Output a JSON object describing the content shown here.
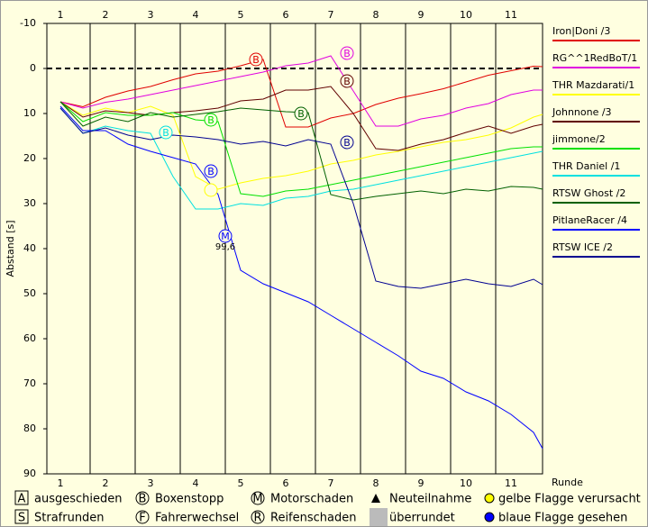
{
  "chart_data": {
    "type": "line",
    "y_label": "Abstand [s]",
    "x_label": "Runde",
    "inverted_y": true,
    "xlim": [
      0.7,
      11.7
    ],
    "xticks": [
      1,
      2,
      3,
      4,
      5,
      6,
      7,
      8,
      9,
      10,
      11
    ],
    "ylim": [
      -10,
      90
    ],
    "yticks": [
      -10,
      0,
      10,
      20,
      30,
      40,
      50,
      60,
      70,
      80,
      90
    ],
    "x": [
      1,
      1.5,
      2,
      2.5,
      3,
      3.5,
      4,
      4.5,
      5,
      5.5,
      6,
      6.5,
      7,
      7.5,
      8,
      8.5,
      9,
      9.5,
      10,
      10.5,
      11,
      11.5,
      11.7
    ],
    "series": [
      {
        "name": "Iron|Doni /3",
        "color": "#e00000",
        "values": [
          7.4,
          8.5,
          6.4,
          5,
          4,
          2.5,
          1.2,
          0.6,
          -0.6,
          -2,
          13,
          13,
          11,
          10,
          8,
          6.6,
          5.6,
          4.5,
          3,
          1.5,
          0.5,
          -0.5,
          -0.4
        ]
      },
      {
        "name": "RG^^1RedBoT/1",
        "color": "#e000e0",
        "values": [
          7.4,
          8.8,
          7.5,
          6.8,
          5.8,
          4.8,
          3.8,
          2.8,
          1.8,
          0.8,
          -0.6,
          -1.2,
          -2.8,
          5,
          12.8,
          12.8,
          11.2,
          10.4,
          8.8,
          7.8,
          5.8,
          4.8,
          4.8
        ]
      },
      {
        "name": "THR Mazdarati/1",
        "color": "#ffff00",
        "values": [
          7.4,
          10.4,
          8.8,
          9.8,
          8.4,
          10.4,
          24,
          26.8,
          25.4,
          24.4,
          23.8,
          22.8,
          21.2,
          20.4,
          19.2,
          18.4,
          17.4,
          16.4,
          15.8,
          14.8,
          13.2,
          10.8,
          10.2
        ]
      },
      {
        "name": "Johnnone /3",
        "color": "#600000",
        "values": [
          7.4,
          10.8,
          9.4,
          9.8,
          10.4,
          9.8,
          9.4,
          8.8,
          7.2,
          6.8,
          4.8,
          4.8,
          4,
          10,
          17.8,
          18.2,
          16.8,
          15.8,
          14.2,
          12.8,
          14.4,
          12.8,
          12.4
        ]
      },
      {
        "name": "jimmone/2",
        "color": "#00e000",
        "values": [
          7.4,
          11.8,
          9.8,
          10.4,
          10.4,
          9.8,
          11.4,
          11.8,
          27.8,
          28.4,
          27.2,
          26.8,
          25.8,
          24.8,
          23.8,
          22.8,
          21.8,
          20.8,
          19.8,
          18.8,
          17.8,
          17.4,
          17.4
        ]
      },
      {
        "name": "THR Daniel /1",
        "color": "#00e0e0",
        "values": [
          8.8,
          14.4,
          12.8,
          13.8,
          14.4,
          24,
          31.2,
          31.2,
          30,
          30.4,
          28.8,
          28.4,
          27.2,
          26.8,
          25.8,
          24.8,
          23.8,
          22.8,
          21.8,
          20.8,
          19.8,
          18.8,
          18.4
        ]
      },
      {
        "name": "RTSW Ghost /2",
        "color": "#006000",
        "values": [
          7.4,
          12.8,
          10.8,
          11.8,
          9.8,
          10.8,
          10.2,
          9.6,
          8.8,
          9.2,
          9.6,
          9.8,
          28,
          29.2,
          28.4,
          27.8,
          27.2,
          27.8,
          26.8,
          27.2,
          26.2,
          26.4,
          26.8
        ]
      },
      {
        "name": "PitlaneRacer /4",
        "color": "#0000ff",
        "values": [
          8.4,
          13.8,
          13.8,
          16.8,
          18.4,
          19.8,
          21.2,
          28,
          44.8,
          47.8,
          49.8,
          51.8,
          54.8,
          57.8,
          60.8,
          63.8,
          67.2,
          68.8,
          71.8,
          73.8,
          76.8,
          80.8,
          84.4
        ]
      },
      {
        "name": "RTSW ICE /2",
        "color": "#000090",
        "values": [
          8.8,
          14.4,
          13.2,
          14.8,
          15.8,
          14.8,
          15.2,
          15.8,
          16.8,
          16.2,
          17.2,
          15.8,
          16.8,
          30,
          47.2,
          48.4,
          48.8,
          47.8,
          46.8,
          47.8,
          48.4,
          46.8,
          48
        ]
      }
    ],
    "markers": [
      {
        "label": "B",
        "series": 0,
        "x": 5.34,
        "y": -2
      },
      {
        "label": "B",
        "series": 1,
        "x": 7.36,
        "y": -3.4
      },
      {
        "label": "B",
        "series": 3,
        "x": 7.36,
        "y": 2.8
      },
      {
        "label": "B",
        "series": 4,
        "x": 4.34,
        "y": 11.4
      },
      {
        "label": "B",
        "series": 6,
        "x": 6.34,
        "y": 10
      },
      {
        "label": "B",
        "series": 5,
        "x": 3.34,
        "y": 14.2
      },
      {
        "series": 2,
        "x": 4.34,
        "y": 27
      },
      {
        "label": "B",
        "series": 7,
        "x": 4.34,
        "y": 22.8
      },
      {
        "label": "M",
        "series": 7,
        "x": 4.66,
        "y": 37.2,
        "note": "99,6"
      },
      {
        "label": "B",
        "series": 8,
        "x": 7.36,
        "y": 16.4
      }
    ],
    "legend": [
      {
        "symbol": "A",
        "text": "ausgeschieden"
      },
      {
        "symbol": "B",
        "text": "Boxenstopp"
      },
      {
        "symbol": "M",
        "text": "Motorschaden"
      },
      {
        "text": "Neuteilnahme"
      },
      {
        "text": "gelbe Flagge verursacht"
      },
      {
        "symbol": "S",
        "text": "Strafrunden"
      },
      {
        "symbol": "F",
        "text": "Fahrerwechsel"
      },
      {
        "symbol": "R",
        "text": "Reifenschaden"
      },
      {
        "text": "überrundet"
      },
      {
        "text": "blaue Flagge gesehen"
      }
    ]
  }
}
